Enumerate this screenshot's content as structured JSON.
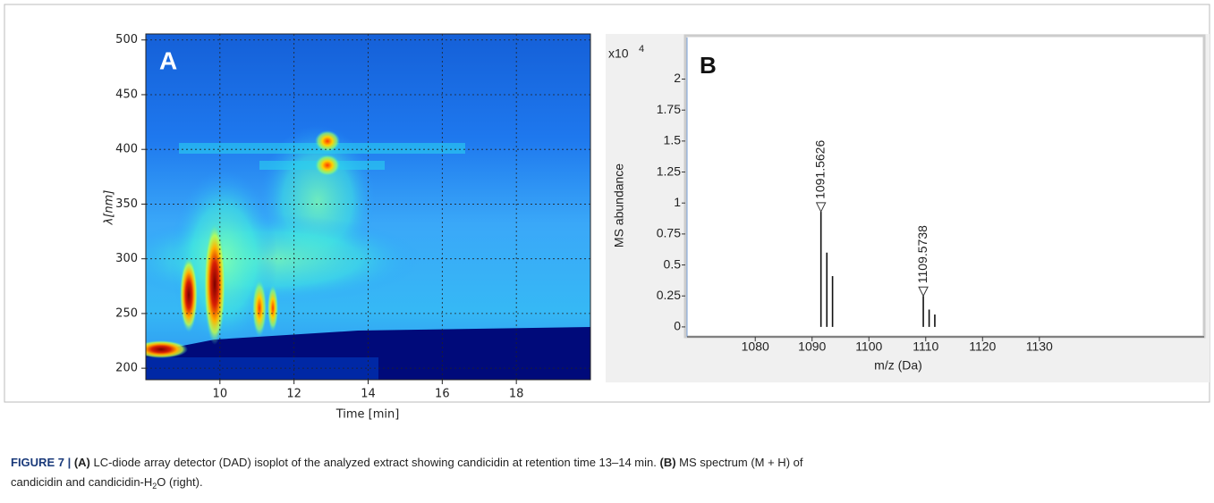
{
  "chart_data": [
    {
      "type": "heatmap",
      "panel_label": "A",
      "x_label": "Time [min]",
      "y_label": "λ[nm]",
      "xlim": [
        8,
        20
      ],
      "xticks": [
        10,
        12,
        14,
        16,
        18
      ],
      "ylim": [
        189.5,
        505.5
      ],
      "yticks": [
        200,
        250,
        300,
        350,
        400,
        450,
        500
      ],
      "grid": true
    },
    {
      "type": "spectrum",
      "panel_label": "B",
      "x_label": "m/z (Da)",
      "y_label": "MS abundance",
      "y_scale_label": "x10",
      "y_scale_exponent": "4",
      "xlim": [
        1068,
        1159
      ],
      "xticks": [
        1080,
        1090,
        1100,
        1110,
        1120,
        1130
      ],
      "ylim": [
        -0.08,
        2.35
      ],
      "yticks": [
        0,
        0.25,
        0.5,
        0.75,
        1,
        1.25,
        1.5,
        1.75,
        2
      ],
      "color": "#111111",
      "x": [
        1091.5626,
        1092.6,
        1093.6,
        1109.5738,
        1110.6,
        1111.6
      ],
      "values": [
        0.93,
        0.6,
        0.41,
        0.25,
        0.14,
        0.1
      ],
      "labeled_peaks": [
        0,
        3
      ]
    }
  ],
  "caption": {
    "label": "FIGURE 7 |",
    "a_tag": "(A)",
    "a_text": " LC-diode array detector (DAD) isoplot of the analyzed extract showing candicidin at retention time 13–14 min. ",
    "b_tag": "(B)",
    "b_text_1": " MS spectrum (M + H) of",
    "b_text_2": "candicidin and candicidin-H",
    "b_sub": "2",
    "b_text_3": "O (right)."
  }
}
